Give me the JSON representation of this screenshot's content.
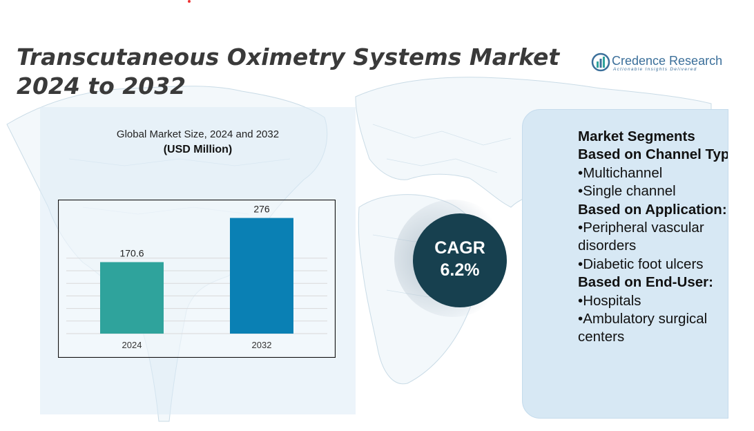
{
  "title": "Transcutaneous Oximetry Systems Market 2024 to 2032",
  "logo": {
    "name": "Credence Research",
    "tagline": "Actionable Insights Delivered"
  },
  "chart_data": {
    "type": "bar",
    "title": "Global Market Size, 2024 and 2032",
    "subtitle": "(USD Million)",
    "categories": [
      "2024",
      "2032"
    ],
    "values": [
      170.6,
      276
    ],
    "value_labels": [
      "170.6",
      "276"
    ],
    "colors": [
      "#2fa39c",
      "#0a80b4"
    ],
    "xlabel": "",
    "ylabel": "",
    "grid": true,
    "legend": "none"
  },
  "cagr": {
    "label": "CAGR",
    "value": "6.2%"
  },
  "segments": {
    "heading": "Market Segments",
    "groups": [
      {
        "title": "Based on Channel Type:",
        "items": [
          "Multichannel",
          "Single channel"
        ]
      },
      {
        "title": "Based on Application:",
        "items": [
          "Peripheral vascular disorders",
          "Diabetic foot ulcers"
        ]
      },
      {
        "title": "Based on End-User:",
        "items": [
          "Hospitals",
          "Ambulatory surgical centers"
        ]
      }
    ]
  },
  "colors": {
    "accent_dark": "#17404f",
    "bar_2024": "#2fa39c",
    "bar_2032": "#0a80b4",
    "panel": "#d7e8f4"
  }
}
